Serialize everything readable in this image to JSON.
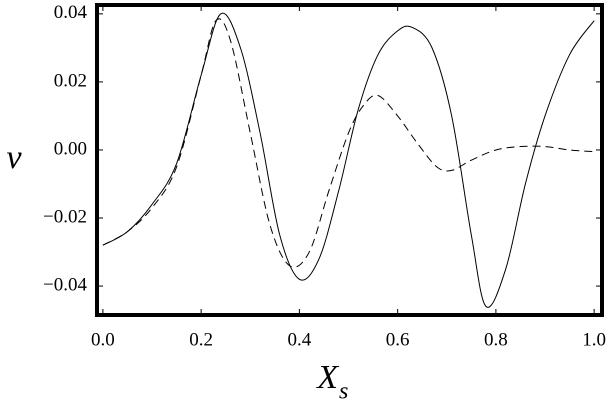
{
  "chart_data": {
    "type": "line",
    "x_label": "X",
    "x_label_sub": "s",
    "y_label": "v",
    "xlim": [
      -0.012,
      1.016
    ],
    "ylim": [
      -0.0485,
      0.0426
    ],
    "xticks": [
      {
        "value": 0,
        "label": "0.0"
      },
      0.2,
      0.4,
      0.6,
      0.8,
      {
        "value": 1,
        "label": "1.0"
      }
    ],
    "yticks": [
      0.04,
      0.02,
      {
        "value": 0,
        "label": "0.00"
      },
      {
        "value": -0.02,
        "label": "−0.02"
      },
      {
        "value": -0.04,
        "label": "−0.04"
      }
    ],
    "grid": false,
    "series": [
      {
        "color": "#000000",
        "dash": false,
        "x": [
          0,
          0.05,
          0.1,
          0.15,
          0.2,
          0.24,
          0.28,
          0.32,
          0.36,
          0.4,
          0.44,
          0.48,
          0.52,
          0.56,
          0.6,
          0.63,
          0.67,
          0.71,
          0.75,
          0.78,
          0.82,
          0.86,
          0.9,
          0.95,
          1.0
        ],
        "values": [
          -0.028,
          -0.024,
          -0.016,
          -0.004,
          0.022,
          0.04,
          0.03,
          0.005,
          -0.025,
          -0.038,
          -0.032,
          -0.012,
          0.012,
          0.028,
          0.035,
          0.036,
          0.03,
          0.01,
          -0.025,
          -0.046,
          -0.035,
          -0.01,
          0.01,
          0.028,
          0.038
        ]
      },
      {
        "color": "#000000",
        "dash": true,
        "x": [
          0,
          0.05,
          0.1,
          0.15,
          0.2,
          0.23,
          0.26,
          0.3,
          0.34,
          0.38,
          0.42,
          0.46,
          0.5,
          0.53,
          0.56,
          0.6,
          0.64,
          0.68,
          0.71,
          0.75,
          0.8,
          0.85,
          0.9,
          0.95,
          1.0
        ],
        "values": [
          -0.028,
          -0.024,
          -0.017,
          -0.005,
          0.022,
          0.038,
          0.032,
          0.005,
          -0.022,
          -0.034,
          -0.03,
          -0.012,
          0.005,
          0.013,
          0.016,
          0.01,
          0.002,
          -0.005,
          -0.006,
          -0.003,
          0,
          0.001,
          0.001,
          0,
          -0.0005
        ]
      }
    ]
  }
}
